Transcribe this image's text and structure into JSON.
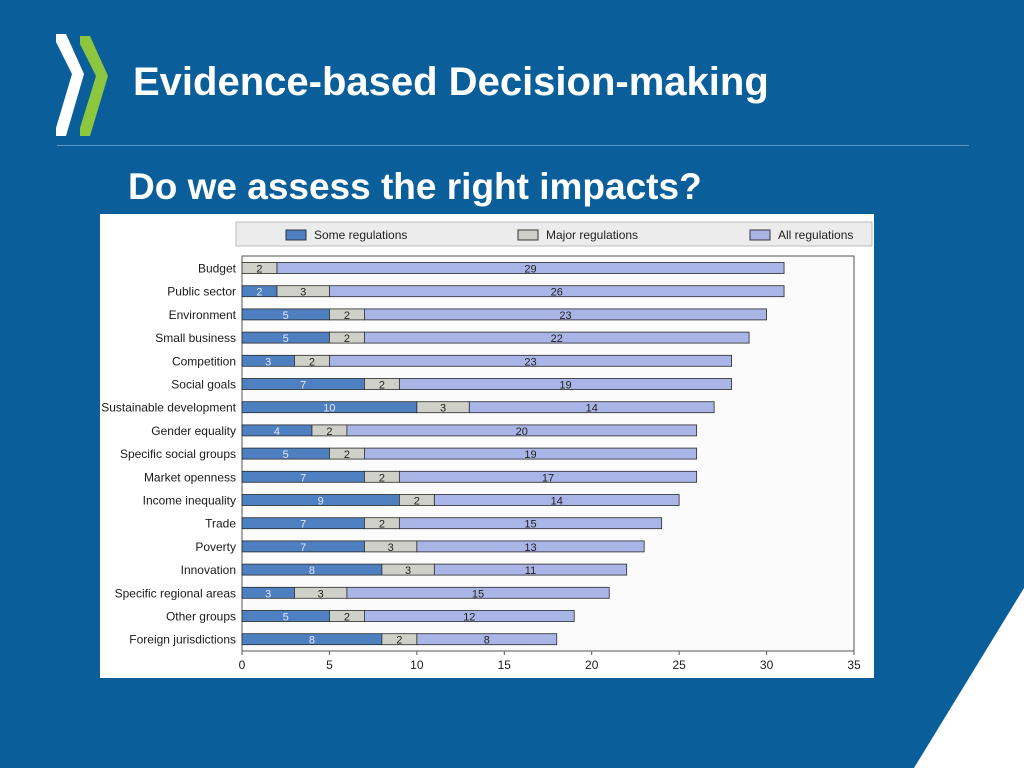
{
  "header": {
    "title": "Evidence-based Decision-making",
    "subtitle": "Do we assess the right impacts?"
  },
  "colors": {
    "background": "#0a5f9b",
    "some": "#4e7fc0",
    "major": "#cfd0c8",
    "all": "#a9b5e6"
  },
  "chart_data": {
    "type": "bar",
    "orientation": "horizontal",
    "stacked": true,
    "categories": [
      "Budget",
      "Public sector",
      "Environment",
      "Small business",
      "Competition",
      "Social goals",
      "Sustainable development",
      "Gender equality",
      "Specific social groups",
      "Market openness",
      "Income inequality",
      "Trade",
      "Poverty",
      "Innovation",
      "Specific regional areas",
      "Other groups",
      "Foreign jurisdictions"
    ],
    "series": [
      {
        "name": "Some regulations",
        "values": [
          0,
          2,
          5,
          5,
          3,
          7,
          10,
          4,
          5,
          7,
          9,
          7,
          7,
          8,
          3,
          5,
          8
        ]
      },
      {
        "name": "Major regulations",
        "values": [
          2,
          3,
          2,
          2,
          2,
          2,
          3,
          2,
          2,
          2,
          2,
          2,
          3,
          3,
          3,
          2,
          2
        ]
      },
      {
        "name": "All regulations",
        "values": [
          29,
          26,
          23,
          22,
          23,
          19,
          14,
          20,
          19,
          17,
          14,
          15,
          13,
          11,
          15,
          12,
          8
        ]
      }
    ],
    "xlim": [
      0,
      35
    ],
    "xticks": [
      0,
      5,
      10,
      15,
      20,
      25,
      30,
      35
    ],
    "legend": "top"
  }
}
